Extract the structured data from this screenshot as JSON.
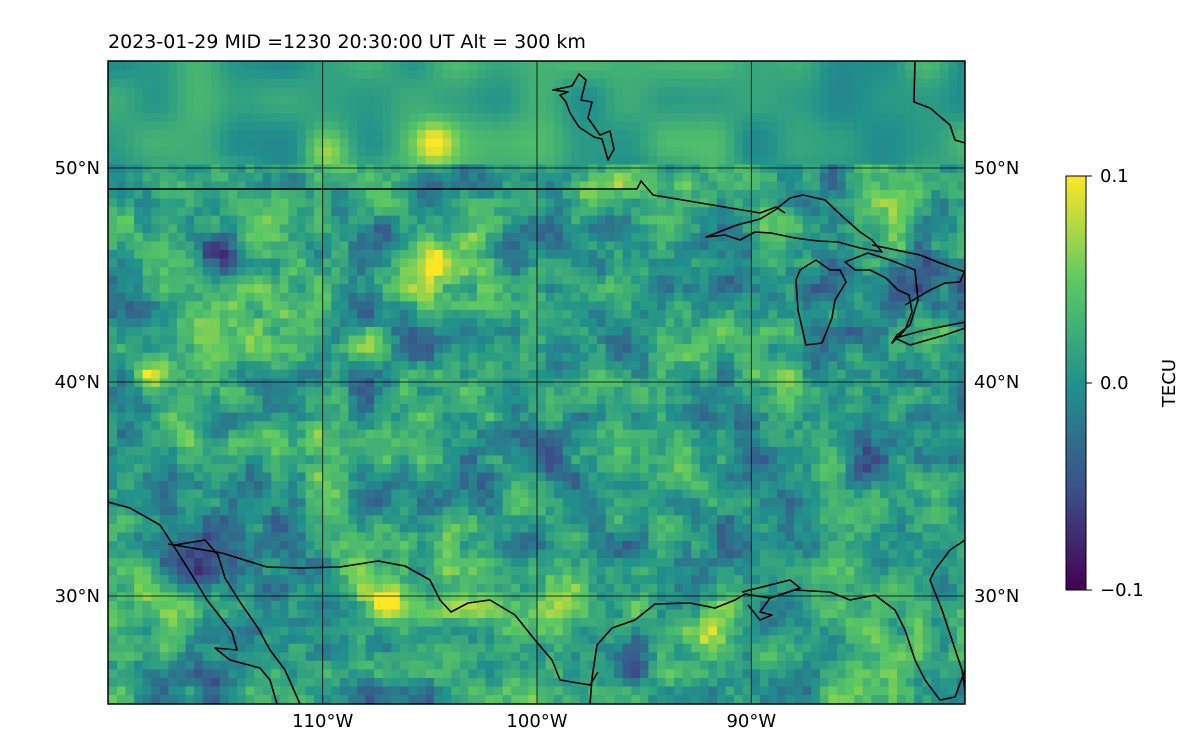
{
  "chart_data": {
    "type": "heatmap",
    "title": "2023-01-29  MID =1230    20:30:00  UT  Alt = 300 km",
    "projection": "map (Plate Carree), North America: central US, Great Lakes, Gulf coast",
    "x_ticks": [
      {
        "value": -110,
        "label": "110°W"
      },
      {
        "value": -100,
        "label": "100°W"
      },
      {
        "value": -90,
        "label": "90°W"
      }
    ],
    "y_ticks": [
      {
        "value": 30,
        "label": "30°N"
      },
      {
        "value": 40,
        "label": "40°N"
      },
      {
        "value": 50,
        "label": "50°N"
      }
    ],
    "lon_range": [
      -120,
      -80
    ],
    "lat_range": [
      25,
      55
    ],
    "grid": true,
    "colormap": "viridis",
    "colors": [
      "#440154",
      "#3b528b",
      "#21918c",
      "#5ec962",
      "#fde725"
    ],
    "colorbar": {
      "label": "TECU",
      "range": [
        -0.1,
        0.1
      ],
      "ticks": [
        {
          "value": 0.1,
          "label": "0.1"
        },
        {
          "value": 0.0,
          "label": "0.0"
        },
        {
          "value": -0.1,
          "label": "−0.1"
        }
      ]
    },
    "blobs": [
      {
        "lon": -118,
        "lat": 40,
        "v": 0.1
      },
      {
        "lon": -108,
        "lat": 42,
        "v": 0.1
      },
      {
        "lon": -105,
        "lat": 45.5,
        "v": 0.1
      },
      {
        "lon": -107,
        "lat": 29.5,
        "v": 0.1
      },
      {
        "lon": -105,
        "lat": 51,
        "v": 0.08
      },
      {
        "lon": -103,
        "lat": 47,
        "v": 0.06
      },
      {
        "lon": -98,
        "lat": 48.5,
        "v": 0.06
      },
      {
        "lon": -110,
        "lat": 50.5,
        "v": 0.05
      },
      {
        "lon": -92,
        "lat": 28,
        "v": 0.05
      },
      {
        "lon": -117,
        "lat": 38,
        "v": 0.06
      },
      {
        "lon": -116,
        "lat": 31,
        "v": -0.1
      },
      {
        "lon": -115,
        "lat": 45.5,
        "v": -0.09
      },
      {
        "lon": -108,
        "lat": 43,
        "v": -0.09
      },
      {
        "lon": -115,
        "lat": 38,
        "v": -0.08
      },
      {
        "lon": -107.5,
        "lat": 28,
        "v": -0.09
      },
      {
        "lon": -96,
        "lat": 27,
        "v": -0.08
      },
      {
        "lon": -85,
        "lat": 36,
        "v": -0.06
      },
      {
        "lon": -93,
        "lat": 34,
        "v": -0.05
      },
      {
        "lon": -100,
        "lat": 36,
        "v": -0.04
      },
      {
        "lon": -82,
        "lat": 45,
        "v": -0.05
      }
    ]
  }
}
